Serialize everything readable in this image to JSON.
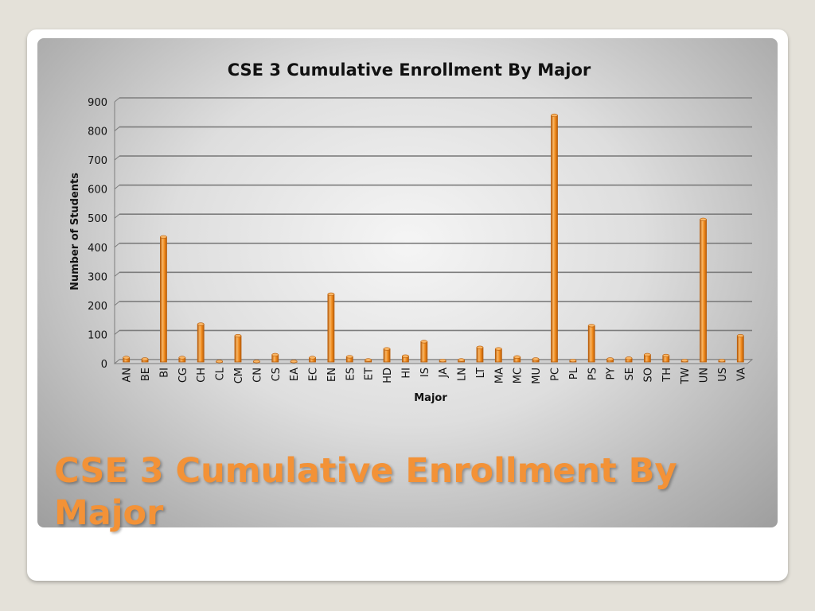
{
  "slide": {
    "title": "CSE 3 Cumulative Enrollment By Major"
  },
  "colors": {
    "bar_fill": "#f08a1c",
    "bar_dark": "#b85d0a",
    "bar_light": "#f9b665",
    "gridline": "#7d7d7d",
    "title_accent": "#f39237"
  },
  "chart_data": {
    "type": "bar",
    "title": "CSE 3 Cumulative Enrollment By Major",
    "xlabel": "Major",
    "ylabel": "Number of Students",
    "ylim": [
      0,
      900
    ],
    "yticks": [
      0,
      100,
      200,
      300,
      400,
      500,
      600,
      700,
      800,
      900
    ],
    "grid": true,
    "legend": "none",
    "categories": [
      "AN",
      "BE",
      "BI",
      "CG",
      "CH",
      "CL",
      "CM",
      "CN",
      "CS",
      "EA",
      "EC",
      "EN",
      "ES",
      "ET",
      "HD",
      "HI",
      "IS",
      "JA",
      "LN",
      "LT",
      "MA",
      "MC",
      "MU",
      "PC",
      "PL",
      "PS",
      "PY",
      "SE",
      "SO",
      "TH",
      "TW",
      "UN",
      "US",
      "VA"
    ],
    "values": [
      15,
      10,
      430,
      15,
      130,
      2,
      90,
      2,
      25,
      2,
      15,
      233,
      18,
      7,
      45,
      20,
      70,
      5,
      7,
      50,
      45,
      17,
      10,
      848,
      5,
      125,
      10,
      13,
      25,
      22,
      5,
      490,
      5,
      90
    ]
  }
}
